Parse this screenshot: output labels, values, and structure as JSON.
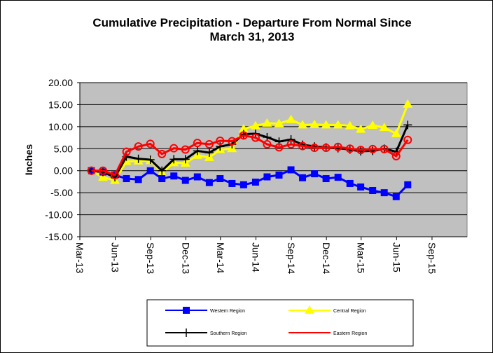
{
  "chart_data": {
    "type": "line",
    "title": [
      "Cumulative Precipitation - Departure From Normal Since",
      "March 31, 2013"
    ],
    "ylabel": "Inches",
    "xlabel": "",
    "ylim": [
      -15,
      20
    ],
    "yticks": [
      "20.00",
      "15.00",
      "10.00",
      "5.00",
      "0.00",
      "-5.00",
      "-10.00",
      "-15.00"
    ],
    "xticks": [
      "Mar-13",
      "Jun-13",
      "Sep-13",
      "Dec-13",
      "Mar-14",
      "Jun-14",
      "Sep-14",
      "Dec-14",
      "Mar-15",
      "Jun-15",
      "Sep-15"
    ],
    "grid": "horizontal",
    "legend_position": "bottom",
    "x": [
      "2013-03-31",
      "2013-04-30",
      "2013-05-31",
      "2013-06-30",
      "2013-07-31",
      "2013-08-31",
      "2013-09-30",
      "2013-10-31",
      "2013-11-30",
      "2013-12-31",
      "2014-01-31",
      "2014-02-28",
      "2014-03-31",
      "2014-04-30",
      "2014-05-31",
      "2014-06-30",
      "2014-07-31",
      "2014-08-31",
      "2014-09-30",
      "2014-10-31",
      "2014-11-30",
      "2014-12-31",
      "2015-01-31",
      "2015-02-28",
      "2015-03-31",
      "2015-04-30",
      "2015-05-31",
      "2015-06-30"
    ],
    "series": [
      {
        "name": "Western Region",
        "color": "#0000FF",
        "marker": "square",
        "values": [
          0.0,
          -0.3,
          -1.0,
          -1.8,
          -2.0,
          0.0,
          -1.8,
          -1.2,
          -2.2,
          -1.4,
          -2.7,
          -1.8,
          -2.9,
          -3.2,
          -2.6,
          -1.4,
          -1.0,
          0.2,
          -1.6,
          -0.7,
          -1.8,
          -1.5,
          -2.9,
          -3.7,
          -4.5,
          -5.0,
          -5.9,
          -3.2
        ]
      },
      {
        "name": "Central Region",
        "color": "#FFFF00",
        "marker": "triangle",
        "values": [
          0.0,
          -1.5,
          -2.2,
          2.1,
          2.2,
          2.3,
          -0.5,
          1.8,
          1.7,
          3.5,
          3.0,
          4.8,
          5.0,
          9.5,
          10.2,
          10.8,
          10.7,
          11.6,
          10.4,
          10.5,
          10.4,
          10.4,
          10.2,
          9.4,
          10.3,
          9.8,
          8.4,
          15.1
        ]
      },
      {
        "name": "Southern Region",
        "color": "#000000",
        "marker": "plus",
        "values": [
          0.0,
          -0.3,
          -1.5,
          3.2,
          2.7,
          2.5,
          0.0,
          2.6,
          2.6,
          4.5,
          4.1,
          5.5,
          6.0,
          8.3,
          8.4,
          7.6,
          6.6,
          7.1,
          5.9,
          5.5,
          5.3,
          5.1,
          4.8,
          4.4,
          4.5,
          5.0,
          4.3,
          10.4
        ]
      },
      {
        "name": "Eastern Region",
        "color": "#FF0000",
        "marker": "circle",
        "values": [
          0.0,
          0.0,
          -1.0,
          4.3,
          5.5,
          6.1,
          3.8,
          5.1,
          4.8,
          6.3,
          6.0,
          6.8,
          6.7,
          8.0,
          7.5,
          6.0,
          5.3,
          6.0,
          5.6,
          5.2,
          5.2,
          5.4,
          5.0,
          4.7,
          4.9,
          4.9,
          3.3,
          7.0
        ]
      }
    ]
  }
}
